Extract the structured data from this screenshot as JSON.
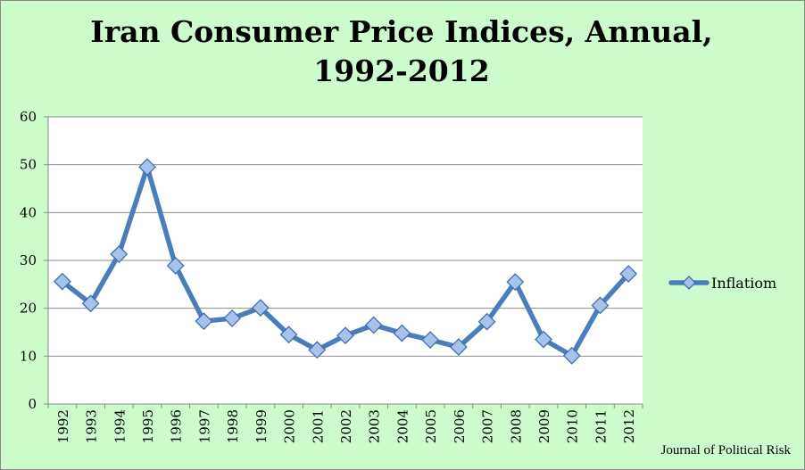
{
  "chart_data": {
    "type": "line",
    "title_lines": [
      "Iran Consumer Price Indices, Annual,",
      "1992-2012"
    ],
    "categories": [
      "1992",
      "1993",
      "1994",
      "1995",
      "1996",
      "1997",
      "1998",
      "1999",
      "2000",
      "2001",
      "2002",
      "2003",
      "2004",
      "2005",
      "2006",
      "2007",
      "2008",
      "2009",
      "2010",
      "2011",
      "2012"
    ],
    "series": [
      {
        "name": "Inflatiom",
        "values": [
          25.6,
          21.0,
          31.3,
          49.5,
          28.9,
          17.3,
          17.9,
          20.1,
          14.5,
          11.3,
          14.3,
          16.5,
          14.8,
          13.4,
          11.9,
          17.2,
          25.5,
          13.5,
          10.1,
          20.6,
          27.2
        ],
        "color": "#4a7ebb",
        "marker": "diamond"
      }
    ],
    "ylim": [
      0,
      60
    ],
    "yticks": [
      0,
      10,
      20,
      30,
      40,
      50,
      60
    ],
    "grid": true,
    "legend_position": "right"
  },
  "source": "Journal of Political Risk"
}
